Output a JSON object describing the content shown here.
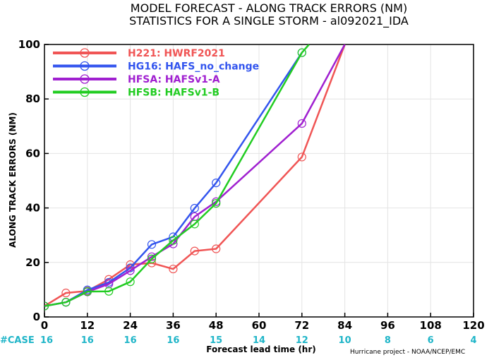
{
  "chart_data": {
    "type": "line",
    "title": "MODEL FORECAST - ALONG TRACK ERRORS (NM)",
    "subtitle": "STATISTICS FOR A SINGLE STORM - al092021_IDA",
    "xlabel": "Forecast lead time (hr)",
    "ylabel": "ALONG TRACK ERRORS (NM)",
    "credit": "Hurricane project - NOAA/NCEP/EMC",
    "xlim": [
      0,
      120
    ],
    "ylim": [
      0,
      100
    ],
    "xticks": [
      0,
      12,
      24,
      36,
      48,
      60,
      72,
      84,
      96,
      108,
      120
    ],
    "yticks": [
      0,
      20,
      40,
      60,
      80,
      100
    ],
    "case_label": "#CASE",
    "cases": [
      16,
      16,
      16,
      16,
      15,
      14,
      12,
      10,
      8,
      6,
      4
    ],
    "legend_position": "top-left",
    "grid": true,
    "series": [
      {
        "name": "H221: HWRF2021",
        "color": "#f05555",
        "x": [
          0,
          6,
          12,
          18,
          24,
          30,
          36,
          42,
          48,
          72,
          84
        ],
        "y": [
          4,
          8.8,
          9.5,
          13.8,
          19.2,
          19.8,
          17.6,
          24.2,
          25,
          58.7,
          100
        ]
      },
      {
        "name": "HG16: HAFS_no_change",
        "color": "#3355ee",
        "x": [
          0,
          6,
          12,
          18,
          24,
          30,
          36,
          42,
          48,
          72
        ],
        "y": [
          4,
          5.4,
          9.9,
          12.7,
          18,
          26.6,
          29.4,
          39.9,
          49.2,
          97
        ]
      },
      {
        "name": "HFSA: HAFSv1-A",
        "color": "#a020d0",
        "x": [
          0,
          6,
          12,
          18,
          24,
          30,
          36,
          42,
          48,
          72,
          84
        ],
        "y": [
          4,
          5.4,
          9.2,
          12.1,
          17,
          22.1,
          26.8,
          36.8,
          42.3,
          71,
          100
        ]
      },
      {
        "name": "HFSB: HAFSv1-B",
        "color": "#22cc22",
        "x": [
          0,
          6,
          12,
          18,
          24,
          30,
          36,
          42,
          48,
          72,
          74
        ],
        "y": [
          4,
          5.4,
          9.3,
          9.4,
          12.9,
          21.3,
          28.1,
          34.1,
          41.7,
          97,
          100
        ]
      }
    ]
  }
}
